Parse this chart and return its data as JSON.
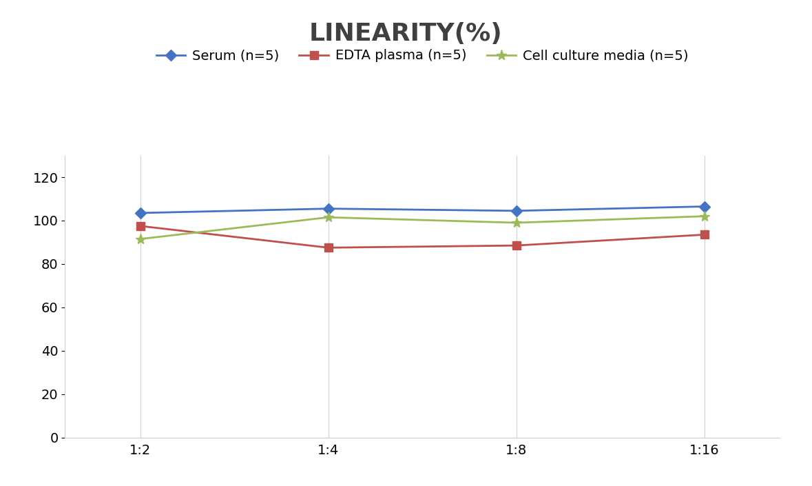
{
  "title": "LINEARITY(%)",
  "x_labels": [
    "1:2",
    "1:4",
    "1:8",
    "1:16"
  ],
  "x_positions": [
    0,
    1,
    2,
    3
  ],
  "series": [
    {
      "name": "Serum (n=5)",
      "values": [
        103.5,
        105.5,
        104.5,
        106.5
      ],
      "color": "#4472C4",
      "marker": "D",
      "marker_size": 8,
      "linewidth": 2.0
    },
    {
      "name": "EDTA plasma (n=5)",
      "values": [
        97.5,
        87.5,
        88.5,
        93.5
      ],
      "color": "#C0504D",
      "marker": "s",
      "marker_size": 8,
      "linewidth": 2.0
    },
    {
      "name": "Cell culture media (n=5)",
      "values": [
        91.5,
        101.5,
        99.0,
        102.0
      ],
      "color": "#9BBB59",
      "marker": "*",
      "marker_size": 11,
      "linewidth": 2.0
    }
  ],
  "ylim": [
    0,
    130
  ],
  "yticks": [
    0,
    20,
    40,
    60,
    80,
    100,
    120
  ],
  "title_fontsize": 26,
  "title_fontweight": "bold",
  "legend_fontsize": 14,
  "tick_fontsize": 14,
  "background_color": "#ffffff",
  "grid_color": "#d0d0d0",
  "grid_linewidth": 0.8
}
